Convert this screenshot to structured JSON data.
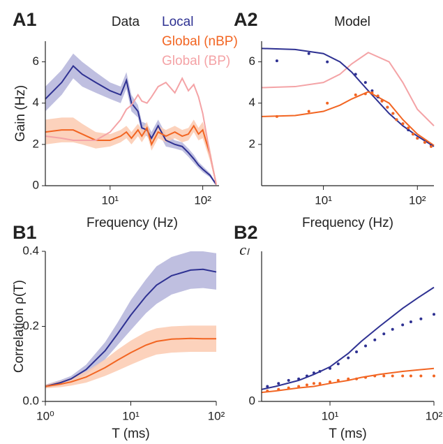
{
  "chart_data": [
    {
      "type": "line",
      "panel": "A1",
      "title": "Data",
      "xlabel": "Frequency (Hz)",
      "ylabel": "Gain (Hz)",
      "xscale": "log",
      "xlim": [
        2,
        150
      ],
      "ylim": [
        0,
        7
      ],
      "xticks": [
        {
          "value": 10,
          "label": "10¹"
        },
        {
          "value": 100,
          "label": "10²"
        }
      ],
      "yticks": [
        0,
        2,
        4,
        6
      ],
      "legend": "upper right",
      "x": [
        2,
        3,
        4,
        5,
        7,
        10,
        13,
        15,
        17,
        20,
        22,
        25,
        28,
        33,
        40,
        50,
        60,
        70,
        80,
        90,
        100,
        120,
        140
      ],
      "series": [
        {
          "name": "Local",
          "color": "#2e3192",
          "band_color": "#b4b4da",
          "values": [
            4.2,
            5.0,
            5.8,
            5.4,
            5.0,
            4.6,
            4.4,
            5.1,
            4.0,
            3.6,
            2.8,
            2.7,
            2.3,
            2.9,
            2.2,
            2.0,
            1.9,
            1.6,
            1.3,
            1.0,
            0.8,
            0.5,
            0.05
          ],
          "lower": [
            3.6,
            4.4,
            5.2,
            4.8,
            4.5,
            4.2,
            4.0,
            4.7,
            3.6,
            3.3,
            2.5,
            2.4,
            2.0,
            2.6,
            1.9,
            1.8,
            1.7,
            1.4,
            1.1,
            0.85,
            0.65,
            0.4,
            0
          ],
          "upper": [
            4.8,
            5.6,
            6.4,
            6.0,
            5.5,
            5.0,
            4.8,
            5.5,
            4.4,
            3.9,
            3.1,
            3.0,
            2.6,
            3.2,
            2.5,
            2.2,
            2.1,
            1.8,
            1.5,
            1.15,
            0.95,
            0.6,
            0.1
          ]
        },
        {
          "name": "Global (nBP)",
          "color": "#f26522",
          "band_color": "#fbcab0",
          "values": [
            2.6,
            2.7,
            2.7,
            2.5,
            2.2,
            2.2,
            2.4,
            2.6,
            2.3,
            2.7,
            2.4,
            2.8,
            2.0,
            2.6,
            2.4,
            2.6,
            2.4,
            2.5,
            2.9,
            2.5,
            2.7,
            1.5,
            0.05
          ],
          "lower": [
            2.0,
            2.1,
            2.1,
            2.0,
            1.8,
            1.9,
            2.1,
            2.3,
            2.0,
            2.4,
            2.1,
            2.5,
            1.7,
            2.3,
            2.1,
            2.3,
            2.1,
            2.2,
            2.6,
            2.2,
            2.3,
            1.2,
            0
          ],
          "upper": [
            3.2,
            3.3,
            3.3,
            3.0,
            2.6,
            2.5,
            2.7,
            2.9,
            2.6,
            3.0,
            2.7,
            3.1,
            2.3,
            2.9,
            2.7,
            2.9,
            2.7,
            2.8,
            3.2,
            2.8,
            3.1,
            1.8,
            0.1
          ]
        },
        {
          "name": "Global (BP)",
          "color": "#f4a3a6",
          "values": [
            2.4,
            2.3,
            2.2,
            2.2,
            2.2,
            2.6,
            3.2,
            3.7,
            3.9,
            4.4,
            4.1,
            4.0,
            4.3,
            4.8,
            5.0,
            4.5,
            5.2,
            4.6,
            4.9,
            4.3,
            3.5,
            1.5,
            0.05
          ]
        }
      ]
    },
    {
      "type": "line",
      "panel": "A2",
      "title": "Model",
      "xlabel": "Frequency (Hz)",
      "xscale": "log",
      "xlim": [
        2.2,
        150
      ],
      "ylim": [
        0,
        7
      ],
      "xticks": [
        {
          "value": 10,
          "label": "10¹"
        },
        {
          "value": 100,
          "label": "10²"
        }
      ],
      "yticks": [
        2,
        4,
        6
      ],
      "series": [
        {
          "color": "#f4a3a6",
          "style": "line",
          "x": [
            2.2,
            5,
            10,
            15,
            20,
            30,
            50,
            70,
            100,
            150
          ],
          "values": [
            4.75,
            4.8,
            5.0,
            5.4,
            5.9,
            6.45,
            6.0,
            5.0,
            3.7,
            2.9
          ]
        },
        {
          "color": "#2e3192",
          "style": "line",
          "x": [
            2.2,
            5,
            10,
            15,
            20,
            30,
            50,
            70,
            100,
            150
          ],
          "values": [
            6.65,
            6.6,
            6.4,
            6.0,
            5.5,
            4.6,
            3.5,
            2.9,
            2.4,
            1.9
          ]
        },
        {
          "color": "#f26522",
          "style": "line",
          "x": [
            2.2,
            5,
            10,
            15,
            20,
            30,
            50,
            70,
            100,
            150
          ],
          "values": [
            3.35,
            3.4,
            3.6,
            3.9,
            4.2,
            4.55,
            4.0,
            3.2,
            2.5,
            1.95
          ]
        },
        {
          "color": "#2e3192",
          "style": "dots",
          "x": [
            3.2,
            7,
            11,
            22,
            28,
            33,
            38,
            42,
            48,
            55,
            60,
            70,
            80,
            90,
            100,
            120,
            140
          ],
          "values": [
            6.05,
            6.4,
            6.0,
            5.4,
            5.0,
            4.6,
            4.3,
            4.1,
            3.8,
            3.5,
            3.2,
            3.0,
            2.7,
            2.5,
            2.3,
            2.1,
            1.95
          ]
        },
        {
          "color": "#f26522",
          "style": "dots",
          "x": [
            3.2,
            7,
            11,
            22,
            28,
            33,
            38,
            42,
            48,
            55,
            60,
            70,
            80,
            90,
            100,
            120,
            140
          ],
          "values": [
            3.35,
            3.6,
            4.0,
            4.4,
            4.45,
            4.5,
            4.35,
            4.1,
            3.8,
            3.5,
            3.2,
            3.0,
            2.8,
            2.5,
            2.3,
            2.1,
            1.9
          ]
        }
      ]
    },
    {
      "type": "line",
      "panel": "B1",
      "xlabel": "T (ms)",
      "ylabel": "Correlation ρ(T)",
      "xscale": "log",
      "xlim": [
        1,
        100
      ],
      "ylim": [
        0,
        0.4
      ],
      "xticks": [
        {
          "value": 1,
          "label": "10⁰"
        },
        {
          "value": 10,
          "label": "10¹"
        },
        {
          "value": 100,
          "label": "10²"
        }
      ],
      "yticks": [
        {
          "value": 0,
          "label": "0.0"
        },
        0.2,
        0.4
      ],
      "x": [
        1,
        1.5,
        2,
        3,
        5,
        7,
        10,
        15,
        20,
        30,
        50,
        70,
        100
      ],
      "series": [
        {
          "color": "#2e3192",
          "band_color": "#b4b4da",
          "values": [
            0.04,
            0.05,
            0.06,
            0.085,
            0.135,
            0.18,
            0.23,
            0.28,
            0.31,
            0.335,
            0.35,
            0.352,
            0.345
          ],
          "lower": [
            0.035,
            0.043,
            0.052,
            0.072,
            0.112,
            0.15,
            0.19,
            0.235,
            0.26,
            0.285,
            0.3,
            0.302,
            0.298
          ],
          "upper": [
            0.045,
            0.057,
            0.068,
            0.098,
            0.158,
            0.21,
            0.27,
            0.325,
            0.36,
            0.385,
            0.4,
            0.4,
            0.395
          ]
        },
        {
          "color": "#f26522",
          "band_color": "#fbcab0",
          "values": [
            0.04,
            0.046,
            0.052,
            0.065,
            0.09,
            0.11,
            0.13,
            0.15,
            0.16,
            0.166,
            0.168,
            0.167,
            0.167
          ],
          "lower": [
            0.035,
            0.038,
            0.042,
            0.05,
            0.068,
            0.082,
            0.098,
            0.115,
            0.125,
            0.13,
            0.132,
            0.132,
            0.132
          ],
          "upper": [
            0.045,
            0.054,
            0.062,
            0.08,
            0.112,
            0.138,
            0.162,
            0.185,
            0.195,
            0.2,
            0.202,
            0.202,
            0.202
          ]
        }
      ]
    },
    {
      "type": "line",
      "panel": "B2",
      "xlabel": "T (ms)",
      "ylabel": "cₗ",
      "xscale": "log",
      "xlim": [
        2.2,
        100
      ],
      "ylim": [
        0,
        1
      ],
      "xticks": [
        {
          "value": 10,
          "label": "10¹"
        },
        {
          "value": 100,
          "label": "10²"
        }
      ],
      "yticks": [
        0
      ],
      "series": [
        {
          "color": "#2e3192",
          "style": "line",
          "x": [
            2.2,
            3,
            5,
            7,
            10,
            15,
            20,
            30,
            50,
            70,
            100
          ],
          "values": [
            0.08,
            0.1,
            0.14,
            0.18,
            0.23,
            0.32,
            0.4,
            0.5,
            0.62,
            0.69,
            0.76
          ]
        },
        {
          "color": "#f26522",
          "style": "line",
          "x": [
            2.2,
            3,
            5,
            7,
            10,
            15,
            20,
            30,
            50,
            70,
            100
          ],
          "values": [
            0.06,
            0.07,
            0.09,
            0.1,
            0.12,
            0.14,
            0.16,
            0.18,
            0.2,
            0.21,
            0.22
          ]
        },
        {
          "color": "#2e3192",
          "style": "dots",
          "x": [
            2.5,
            3.2,
            4,
            5,
            6,
            7,
            8,
            10,
            12,
            15,
            18,
            22,
            27,
            33,
            40,
            50,
            60,
            75,
            100
          ],
          "values": [
            0.1,
            0.12,
            0.14,
            0.15,
            0.17,
            0.19,
            0.2,
            0.22,
            0.25,
            0.29,
            0.33,
            0.37,
            0.41,
            0.45,
            0.48,
            0.51,
            0.53,
            0.55,
            0.58
          ]
        },
        {
          "color": "#f26522",
          "style": "dots",
          "x": [
            2.5,
            3.2,
            4,
            5,
            6,
            7,
            8,
            10,
            12,
            15,
            18,
            22,
            27,
            33,
            40,
            50,
            60,
            75,
            100
          ],
          "values": [
            0.07,
            0.08,
            0.09,
            0.1,
            0.11,
            0.12,
            0.12,
            0.13,
            0.14,
            0.15,
            0.15,
            0.16,
            0.17,
            0.17,
            0.17,
            0.17,
            0.17,
            0.17,
            0.17
          ]
        }
      ]
    }
  ]
}
